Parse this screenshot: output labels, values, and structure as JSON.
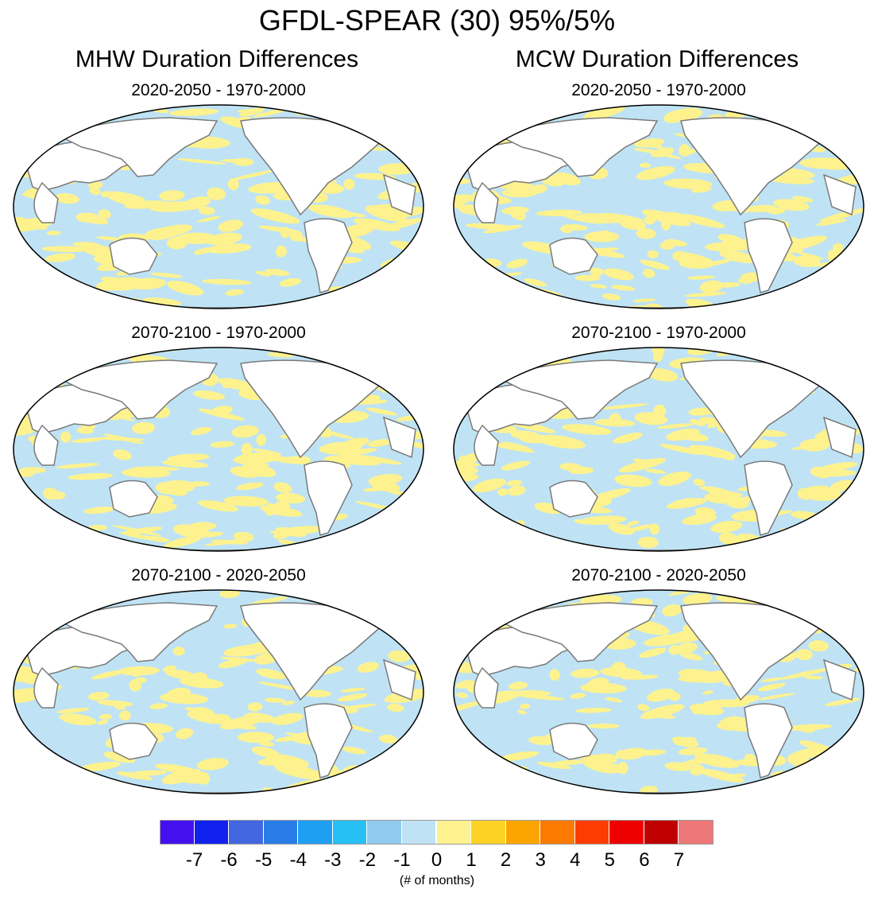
{
  "title": "GFDL-SPEAR (30) 95%/5%",
  "columns": [
    {
      "title": "MHW Duration Differences"
    },
    {
      "title": "MCW Duration Differences"
    }
  ],
  "panels": [
    {
      "subtitle": "2020-2050 - 1970-2000"
    },
    {
      "subtitle": "2020-2050 - 1970-2000"
    },
    {
      "subtitle": "2070-2100 - 1970-2000"
    },
    {
      "subtitle": "2070-2100 - 1970-2000"
    },
    {
      "subtitle": "2070-2100 - 2020-2050"
    },
    {
      "subtitle": "2070-2100 - 2020-2050"
    }
  ],
  "colorbar": {
    "colors": [
      "#4411ee",
      "#1122ee",
      "#4466e0",
      "#2a7de8",
      "#1e9ff2",
      "#27c0f5",
      "#8fcbee",
      "#bfe3f5",
      "#fdf28e",
      "#fcd325",
      "#fca500",
      "#fc7a00",
      "#fc3c00",
      "#ee0000",
      "#c00000",
      "#ee7878"
    ],
    "labels": [
      "-7",
      "-6",
      "-5",
      "-4",
      "-3",
      "-2",
      "-1",
      "0",
      "1",
      "2",
      "3",
      "4",
      "5",
      "6",
      "7"
    ],
    "unit": "(# of months)"
  }
}
